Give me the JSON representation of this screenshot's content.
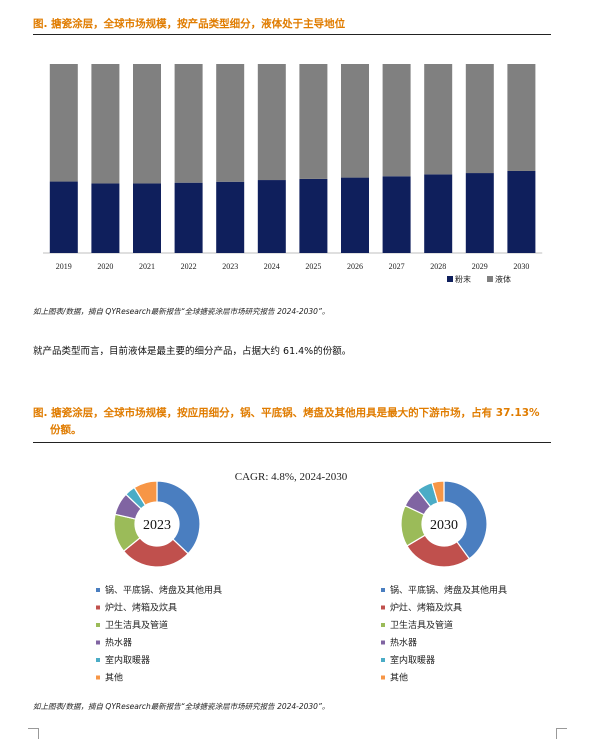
{
  "figure1": {
    "title": "图.    搪瓷涂层，全球市场规模，按产品类型细分，液体处于主导地位",
    "source": "如上图表/数据，摘自 QYResearch最新报告“全球搪瓷涂层市场研究报告 2024-2030”。"
  },
  "paragraph": "就产品类型而言，目前液体是最主要的细分产品，占据大约 61.4%的份额。",
  "figure2": {
    "title_line1": "图.    搪瓷涂层，全球市场规模，按应用细分，锅、平底锅、烤盘及其他用具是最大的下游市场，占有 37.13%",
    "title_line2": "份额。",
    "source": "如上图表/数据，摘自 QYResearch最新报告“全球搪瓷涂层市场研究报告 2024-2030”。"
  },
  "chart_data": [
    {
      "type": "bar",
      "stacked": true,
      "categories": [
        "2019",
        "2020",
        "2021",
        "2022",
        "2023",
        "2024",
        "2025",
        "2026",
        "2027",
        "2028",
        "2029",
        "2030"
      ],
      "series": [
        {
          "name": "粉末",
          "color": "#0f1f5c",
          "values": [
            37.8,
            36.8,
            36.8,
            37.2,
            37.7,
            38.6,
            39.2,
            39.9,
            40.6,
            41.6,
            42.3,
            43.4
          ]
        },
        {
          "name": "液体",
          "color": "#808080",
          "values": [
            62.2,
            63.2,
            63.2,
            62.8,
            62.3,
            61.4,
            60.8,
            60.1,
            59.4,
            58.4,
            57.7,
            56.6
          ]
        }
      ],
      "ylim": [
        0,
        100
      ],
      "legend_position": "bottom-right"
    },
    {
      "type": "pie",
      "subtype": "donut",
      "subtitle": "CAGR:    4.8%, 2024-2030",
      "charts": [
        {
          "center_label": "2023",
          "values": [
            37.13,
            27.0,
            14.5,
            8.5,
            4.0,
            8.87
          ]
        },
        {
          "center_label": "2030",
          "values": [
            40.0,
            26.5,
            15.5,
            7.5,
            6.0,
            4.5
          ]
        }
      ],
      "legend": [
        {
          "label": "锅、平底锅、烤盘及其他用具",
          "color": "#4a7ec0"
        },
        {
          "label": "炉灶、烤箱及炊具",
          "color": "#c0504d"
        },
        {
          "label": "卫生洁具及管道",
          "color": "#9bbb59"
        },
        {
          "label": "热水器",
          "color": "#8064a2"
        },
        {
          "label": "室内取暖器",
          "color": "#4bacc6"
        },
        {
          "label": "其他",
          "color": "#f79646"
        }
      ]
    }
  ]
}
